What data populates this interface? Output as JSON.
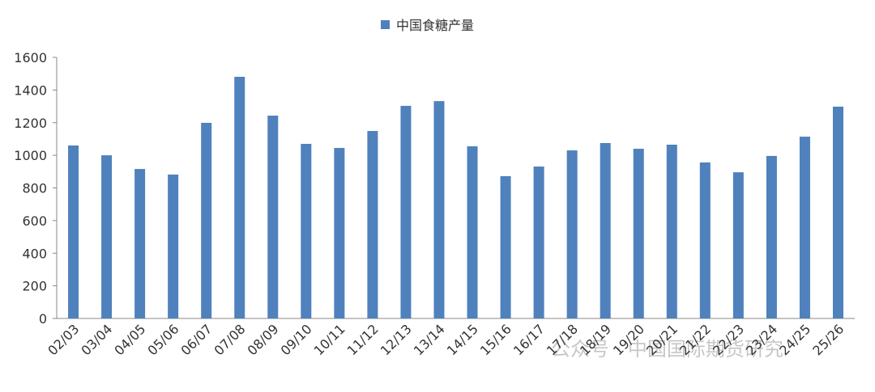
{
  "chart_data": {
    "type": "bar",
    "categories": [
      "02/03",
      "03/04",
      "04/05",
      "05/06",
      "06/07",
      "07/08",
      "08/09",
      "09/10",
      "10/11",
      "11/12",
      "12/13",
      "13/14",
      "14/15",
      "15/16",
      "16/17",
      "17/18",
      "18/19",
      "19/20",
      "20/21",
      "21/22",
      "22/23",
      "23/24",
      "24/25",
      "25/26"
    ],
    "series": [
      {
        "name": "中国食糖产量",
        "color": "#4f81bd",
        "values": [
          1060,
          1000,
          916,
          882,
          1199,
          1481,
          1243,
          1070,
          1045,
          1149,
          1303,
          1332,
          1055,
          872,
          931,
          1030,
          1075,
          1040,
          1065,
          956,
          896,
          996,
          1114,
          1298
        ]
      }
    ],
    "ylim": [
      0,
      1600
    ],
    "yticks": [
      0,
      200,
      400,
      600,
      800,
      1000,
      1200,
      1400,
      1600
    ],
    "grid": false,
    "legend": "top",
    "watermark": "公众号 · 中国国际期货研究"
  }
}
